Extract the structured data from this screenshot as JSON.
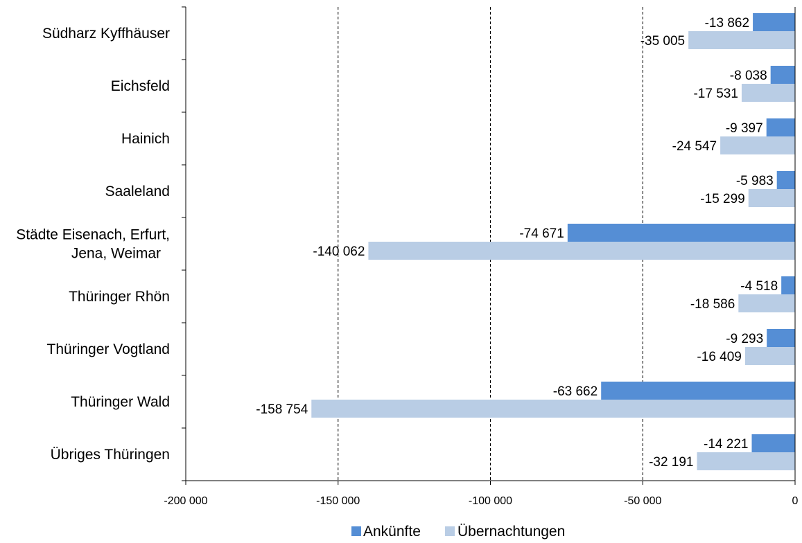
{
  "chart_data": {
    "type": "bar",
    "orientation": "horizontal",
    "categories": [
      [
        "Südharz Kyffhäuser"
      ],
      [
        "Eichsfeld"
      ],
      [
        "Hainich"
      ],
      [
        "Saaleland"
      ],
      [
        "Städte Eisenach, Erfurt,",
        "Jena, Weimar"
      ],
      [
        "Thüringer Rhön"
      ],
      [
        "Thüringer Vogtland"
      ],
      [
        "Thüringer Wald"
      ],
      [
        "Übriges Thüringen"
      ]
    ],
    "series": [
      {
        "name": "Ankünfte",
        "color": "#558ed5",
        "values": [
          -13862,
          -8038,
          -9397,
          -5983,
          -74671,
          -4518,
          -9293,
          -63662,
          -14221
        ],
        "labels": [
          "-13 862",
          "-8 038",
          "-9 397",
          "-5 983",
          "-74 671",
          "-4 518",
          "-9 293",
          "-63 662",
          "-14 221"
        ]
      },
      {
        "name": "Übernachtungen",
        "color": "#b9cde5",
        "values": [
          -35005,
          -17531,
          -24547,
          -15299,
          -140062,
          -18586,
          -16409,
          -158754,
          -32191
        ],
        "labels": [
          "-35 005",
          "-17 531",
          "-24 547",
          "-15 299",
          "-140 062",
          "-18 586",
          "-16 409",
          "-158 754",
          "-32 191"
        ]
      }
    ],
    "xlim": [
      -200000,
      0
    ],
    "xticks": [
      -200000,
      -150000,
      -100000,
      -50000,
      0
    ],
    "xtick_labels": [
      "-200 000",
      "-150 000",
      "-100 000",
      "-50 000",
      "0"
    ],
    "grid": "vertical dashed",
    "legend": "bottom-center"
  }
}
